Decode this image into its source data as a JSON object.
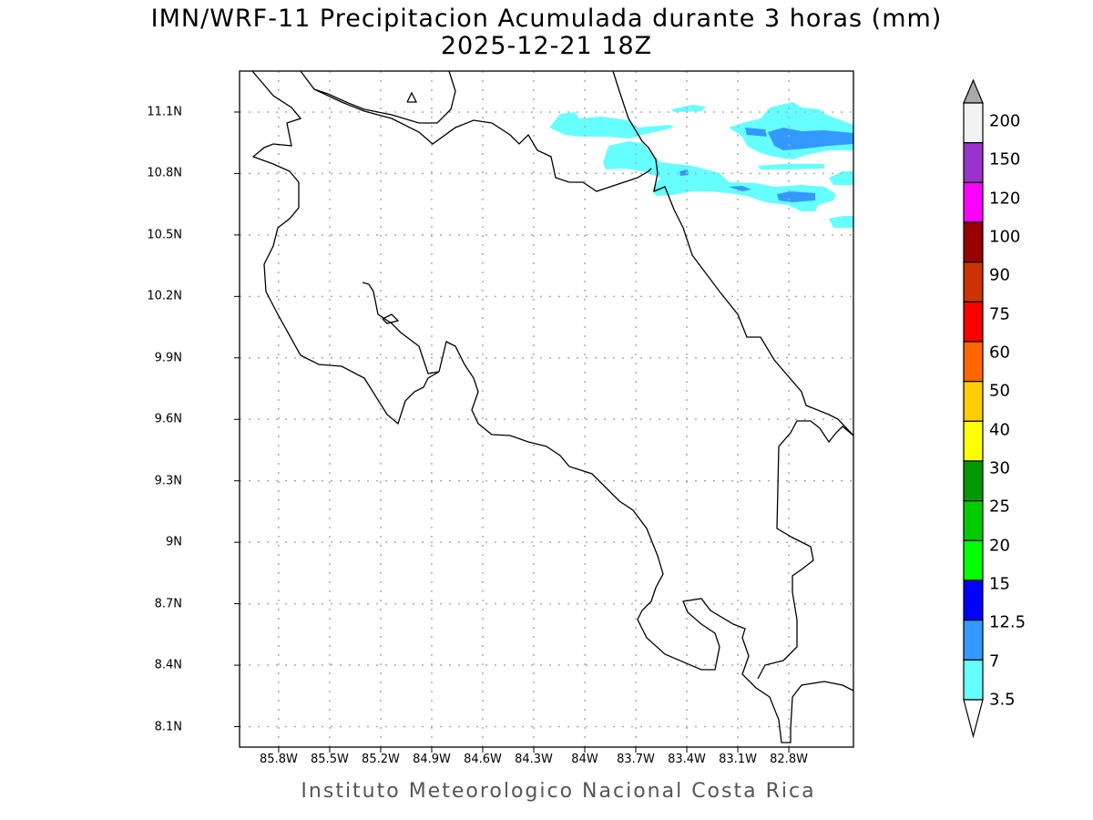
{
  "title": {
    "line1": "IMN/WRF-11 Precipitacion Acumulada durante 3 horas (mm)",
    "line2": "2025-12-21 18Z"
  },
  "map": {
    "lat_ticks": [
      "11.1N",
      "10.8N",
      "10.5N",
      "10.2N",
      "9.9N",
      "9.6N",
      "9.3N",
      "9N",
      "8.7N",
      "8.4N",
      "8.1N"
    ],
    "lon_ticks": [
      "85.8W",
      "85.5W",
      "85.2W",
      "84.9W",
      "84.6W",
      "84.3W",
      "84W",
      "83.7W",
      "83.4W",
      "83.1W",
      "82.8W"
    ],
    "lat_range": [
      8.0,
      11.3
    ],
    "lon_range": [
      -86.03,
      -82.42
    ],
    "grid": true,
    "region": "Costa Rica"
  },
  "colorbar": {
    "units": "mm",
    "labels": [
      "200",
      "150",
      "120",
      "100",
      "90",
      "75",
      "60",
      "50",
      "40",
      "30",
      "25",
      "20",
      "15",
      "12.5",
      "7",
      "3.5"
    ],
    "colors": [
      "#f2f2f2",
      "#9933cc",
      "#ff00ff",
      "#990000",
      "#cc3300",
      "#ff0000",
      "#ff6600",
      "#ffcc00",
      "#ffff00",
      "#009900",
      "#00cc00",
      "#00ff00",
      "#0000ff",
      "#3399ff",
      "#66ffff"
    ],
    "over_color": "#aaaaaa",
    "under_color": "#ffffff"
  },
  "credit": "Instituto Meteorologico Nacional Costa Rica"
}
